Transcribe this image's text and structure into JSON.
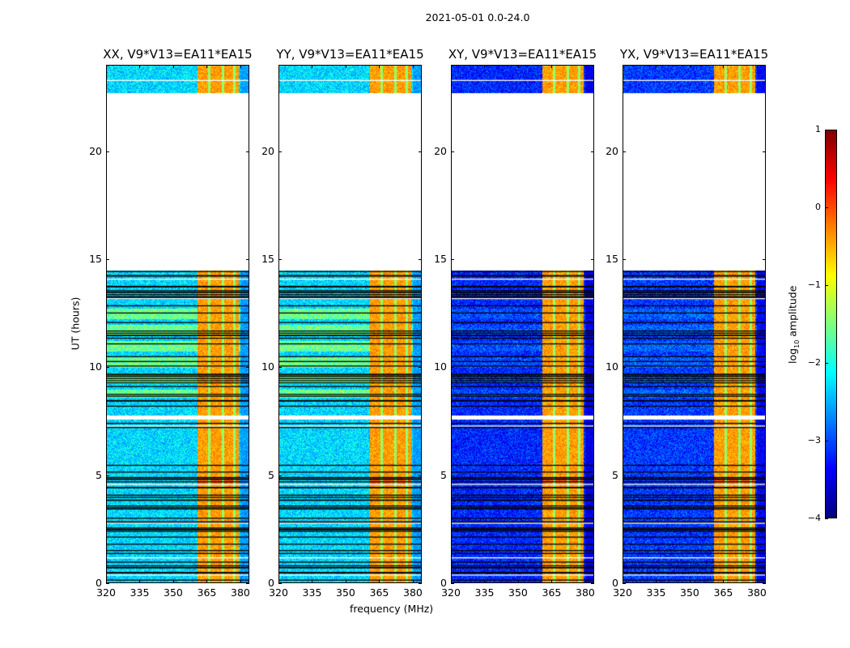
{
  "suptitle": "2021-05-01 0.0-24.0",
  "chart_data": {
    "type": "heatmap",
    "title": "2021-05-01 0.0-24.0",
    "xlabel": "frequency (MHz)",
    "ylabel": "UT (hours)",
    "xlim": [
      320,
      384
    ],
    "ylim": [
      0,
      24
    ],
    "xticks": [
      "320",
      "335",
      "350",
      "365",
      "380"
    ],
    "xtick_values": [
      320,
      335,
      350,
      365,
      380
    ],
    "yticks": [
      "0",
      "5",
      "10",
      "15",
      "20"
    ],
    "ytick_values": [
      0,
      5,
      10,
      15,
      20
    ],
    "panels": [
      {
        "title": "XX, V9*V13=EA11*EA15",
        "background_level": -2.3,
        "mid_level": -1.6
      },
      {
        "title": "YY, V9*V13=EA11*EA15",
        "background_level": -2.3,
        "mid_level": -1.6
      },
      {
        "title": "XY, V9*V13=EA11*EA15",
        "background_level": -3.2,
        "mid_level": -3.0
      },
      {
        "title": "YX, V9*V13=EA11*EA15",
        "background_level": -3.1,
        "mid_level": -2.9
      }
    ],
    "data_time_ranges_hours": [
      [
        0,
        7.6
      ],
      [
        7.8,
        14.5
      ],
      [
        22.7,
        24
      ]
    ],
    "mid_time_range_hours": [
      8.6,
      13.0
    ],
    "strong_band_mhz": [
      360.5,
      379
    ],
    "strong_band_level": -0.4,
    "band_gaps_mhz": [
      366,
      372,
      377
    ],
    "colorbar": {
      "label": "log10 amplitude",
      "label_main": "log",
      "label_sub": "10",
      "label_rest": " amplitude",
      "range": [
        -4,
        1
      ],
      "ticks": [
        "1",
        "0",
        "−1",
        "−2",
        "−3",
        "−4"
      ],
      "tick_values": [
        1,
        0,
        -1,
        -2,
        -3,
        -4
      ],
      "colormap": "jet"
    }
  }
}
